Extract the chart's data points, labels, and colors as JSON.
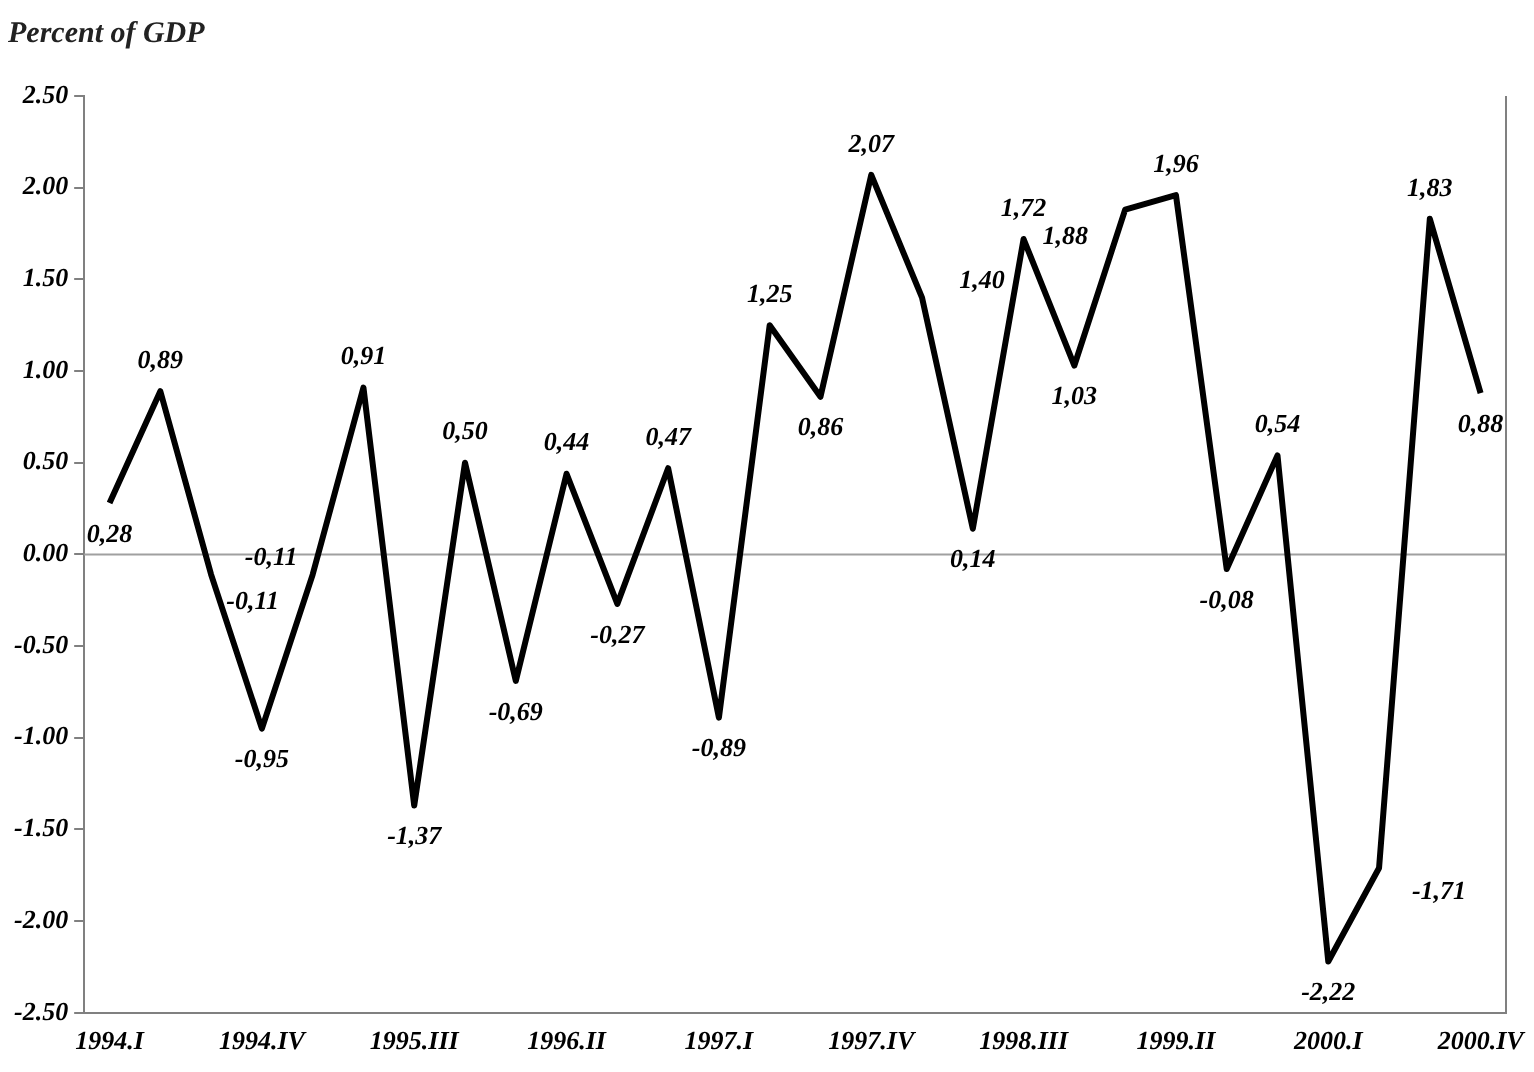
{
  "chart_data": {
    "type": "line",
    "title": "Percent of GDP",
    "categories": [
      "1994.I",
      null,
      null,
      "1994.IV",
      null,
      null,
      "1995.III",
      null,
      null,
      "1996.II",
      null,
      null,
      "1997.I",
      null,
      null,
      "1997.IV",
      null,
      null,
      "1998.III",
      null,
      null,
      "1999.II",
      null,
      null,
      "2000.I",
      null,
      null,
      "2000.IV"
    ],
    "series": [
      {
        "color": "#000000",
        "values": [
          0.28,
          0.89,
          -0.11,
          -0.95,
          -0.11,
          0.91,
          -1.37,
          0.5,
          -0.69,
          0.44,
          -0.27,
          0.47,
          -0.89,
          1.25,
          0.86,
          2.07,
          1.4,
          0.14,
          1.72,
          1.03,
          1.88,
          1.96,
          -0.08,
          0.54,
          -2.22,
          -1.71,
          1.83,
          0.88
        ],
        "value_labels": [
          "0,28",
          "0,89",
          "-0,11",
          "-0,95",
          "-0,11",
          "0,91",
          "-1,37",
          "0,50",
          "-0,69",
          "0,44",
          "-0,27",
          "0,47",
          "-0,89",
          "1,25",
          "0,86",
          "2,07",
          "1,40",
          "0,14",
          "1,72",
          "1,03",
          "1,88",
          "1,96",
          "-0,08",
          "0,54",
          "-2,22",
          "-1,71",
          "1,83",
          "0,88"
        ]
      }
    ],
    "ylim": [
      -2.5,
      2.5
    ],
    "yticks": [
      {
        "value": 2.5,
        "label": "2.50"
      },
      {
        "value": 2,
        "label": "2.00"
      },
      {
        "value": 1.5,
        "label": "1.50"
      },
      {
        "value": 1,
        "label": "1.00"
      },
      {
        "value": 0.5,
        "label": "0.50"
      },
      {
        "value": 0,
        "label": "0.00"
      },
      {
        "value": -0.5,
        "label": "-0.50"
      },
      {
        "value": -1,
        "label": "-1.00"
      },
      {
        "value": -1.5,
        "label": "-1.50"
      },
      {
        "value": -2,
        "label": "-2.00"
      },
      {
        "value": -2.5,
        "label": "-2.50"
      }
    ],
    "ref_lines": [
      {
        "axis": "y",
        "value": 0,
        "color": "#a0a0a0"
      }
    ],
    "grid": false,
    "legend": false,
    "marker": "none",
    "line_style": "solid"
  }
}
